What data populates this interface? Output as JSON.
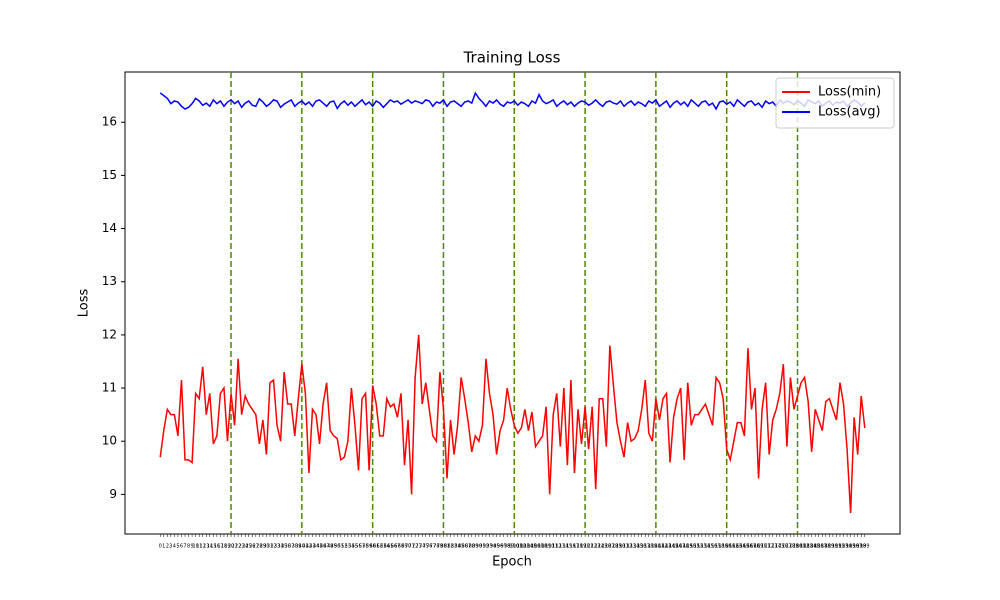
{
  "chart_data": {
    "type": "line",
    "title": "Training Loss",
    "xlabel": "Epoch",
    "ylabel": "Loss",
    "x": [
      0,
      1,
      2,
      3,
      4,
      5,
      6,
      7,
      8,
      9,
      10,
      11,
      12,
      13,
      14,
      15,
      16,
      17,
      18,
      19,
      20,
      21,
      22,
      23,
      24,
      25,
      26,
      27,
      28,
      29,
      30,
      31,
      32,
      33,
      34,
      35,
      36,
      37,
      38,
      39,
      40,
      41,
      42,
      43,
      44,
      45,
      46,
      47,
      48,
      49,
      50,
      51,
      52,
      53,
      54,
      55,
      56,
      57,
      58,
      59,
      60,
      61,
      62,
      63,
      64,
      65,
      66,
      67,
      68,
      69,
      70,
      71,
      72,
      73,
      74,
      75,
      76,
      77,
      78,
      79,
      80,
      81,
      82,
      83,
      84,
      85,
      86,
      87,
      88,
      89,
      90,
      91,
      92,
      93,
      94,
      95,
      96,
      97,
      98,
      99,
      100,
      101,
      102,
      103,
      104,
      105,
      106,
      107,
      108,
      109,
      110,
      111,
      112,
      113,
      114,
      115,
      116,
      117,
      118,
      119,
      120,
      121,
      122,
      123,
      124,
      125,
      126,
      127,
      128,
      129,
      130,
      131,
      132,
      133,
      134,
      135,
      136,
      137,
      138,
      139,
      140,
      141,
      142,
      143,
      144,
      145,
      146,
      147,
      148,
      149,
      150,
      151,
      152,
      153,
      154,
      155,
      156,
      157,
      158,
      159,
      160,
      161,
      162,
      163,
      164,
      165,
      166,
      167,
      168,
      169,
      170,
      171,
      172,
      173,
      174,
      175,
      176,
      177,
      178,
      179,
      180,
      181,
      182,
      183,
      184,
      185,
      186,
      187,
      188,
      189,
      190,
      191,
      192,
      193,
      194,
      195,
      196,
      197,
      198,
      199
    ],
    "series": [
      {
        "name": "Loss(min)",
        "color": "#ff0000",
        "values": [
          9.7,
          10.2,
          10.6,
          10.5,
          10.5,
          10.1,
          11.15,
          9.65,
          9.65,
          9.6,
          10.9,
          10.8,
          11.4,
          10.5,
          10.9,
          9.95,
          10.1,
          10.9,
          11.0,
          10.0,
          10.9,
          10.3,
          11.55,
          10.5,
          10.85,
          10.7,
          10.6,
          10.5,
          9.95,
          10.4,
          9.75,
          11.1,
          11.15,
          10.3,
          10.0,
          11.3,
          10.7,
          10.7,
          10.1,
          10.8,
          11.45,
          10.9,
          9.4,
          10.6,
          10.5,
          9.95,
          10.7,
          11.1,
          10.2,
          10.1,
          10.05,
          9.65,
          9.7,
          10.0,
          11.0,
          10.3,
          9.45,
          10.8,
          10.9,
          9.45,
          11.05,
          10.7,
          10.1,
          10.1,
          10.8,
          10.65,
          10.7,
          10.45,
          10.9,
          9.55,
          10.4,
          9.0,
          11.2,
          12.0,
          10.7,
          11.1,
          10.6,
          10.1,
          10.0,
          11.3,
          10.6,
          9.3,
          10.4,
          9.75,
          10.3,
          11.2,
          10.8,
          10.35,
          9.8,
          10.1,
          10.0,
          10.3,
          11.55,
          10.9,
          10.5,
          9.75,
          10.2,
          10.4,
          11.0,
          10.6,
          10.3,
          10.15,
          10.25,
          10.6,
          10.2,
          10.55,
          9.9,
          10.0,
          10.1,
          10.65,
          9.0,
          10.5,
          10.9,
          9.9,
          11.0,
          9.55,
          11.15,
          9.4,
          10.6,
          9.95,
          10.65,
          9.85,
          10.65,
          9.1,
          10.8,
          10.8,
          9.9,
          11.8,
          11.05,
          10.35,
          10.0,
          9.7,
          10.35,
          10.0,
          10.05,
          10.2,
          10.6,
          11.15,
          10.15,
          10.0,
          10.8,
          10.4,
          10.8,
          10.9,
          9.6,
          10.45,
          10.8,
          11.0,
          9.65,
          11.1,
          10.3,
          10.5,
          10.5,
          10.6,
          10.7,
          10.5,
          10.3,
          11.2,
          11.1,
          10.8,
          9.85,
          9.65,
          10.0,
          10.35,
          10.35,
          10.1,
          11.75,
          10.6,
          11.0,
          9.3,
          10.6,
          11.1,
          9.75,
          10.4,
          10.6,
          10.9,
          11.45,
          9.9,
          11.2,
          10.6,
          10.85,
          11.1,
          11.2,
          10.75,
          9.8,
          10.6,
          10.4,
          10.2,
          10.75,
          10.8,
          10.6,
          10.4,
          11.1,
          10.7,
          9.85,
          8.65,
          10.45,
          9.75,
          10.85,
          10.25
        ]
      },
      {
        "name": "Loss(avg)",
        "color": "#0000ff",
        "values": [
          16.55,
          16.5,
          16.45,
          16.35,
          16.4,
          16.38,
          16.3,
          16.25,
          16.28,
          16.35,
          16.45,
          16.4,
          16.32,
          16.36,
          16.3,
          16.42,
          16.35,
          16.4,
          16.3,
          16.38,
          16.42,
          16.35,
          16.4,
          16.28,
          16.36,
          16.4,
          16.32,
          16.3,
          16.44,
          16.38,
          16.3,
          16.35,
          16.42,
          16.4,
          16.28,
          16.34,
          16.38,
          16.42,
          16.3,
          16.36,
          16.4,
          16.33,
          16.38,
          16.3,
          16.4,
          16.42,
          16.36,
          16.3,
          16.38,
          16.4,
          16.26,
          16.35,
          16.4,
          16.32,
          16.38,
          16.3,
          16.36,
          16.42,
          16.33,
          16.38,
          16.3,
          16.4,
          16.36,
          16.28,
          16.35,
          16.42,
          16.38,
          16.4,
          16.34,
          16.38,
          16.42,
          16.36,
          16.4,
          16.38,
          16.35,
          16.42,
          16.4,
          16.3,
          16.38,
          16.36,
          16.42,
          16.3,
          16.38,
          16.4,
          16.35,
          16.3,
          16.38,
          16.4,
          16.36,
          16.55,
          16.45,
          16.38,
          16.3,
          16.4,
          16.36,
          16.42,
          16.34,
          16.3,
          16.38,
          16.36,
          16.4,
          16.32,
          16.38,
          16.35,
          16.3,
          16.4,
          16.36,
          16.52,
          16.4,
          16.35,
          16.38,
          16.42,
          16.3,
          16.36,
          16.4,
          16.33,
          16.38,
          16.3,
          16.36,
          16.4,
          16.38,
          16.32,
          16.36,
          16.42,
          16.35,
          16.3,
          16.38,
          16.4,
          16.36,
          16.34,
          16.4,
          16.3,
          16.36,
          16.4,
          16.32,
          16.38,
          16.35,
          16.3,
          16.4,
          16.36,
          16.42,
          16.3,
          16.35,
          16.4,
          16.28,
          16.36,
          16.4,
          16.33,
          16.38,
          16.3,
          16.42,
          16.36,
          16.3,
          16.38,
          16.4,
          16.32,
          16.36,
          16.25,
          16.38,
          16.4,
          16.34,
          16.38,
          16.3,
          16.42,
          16.36,
          16.3,
          16.38,
          16.4,
          16.32,
          16.36,
          16.28,
          16.4,
          16.35,
          16.38,
          16.3,
          16.42,
          16.36,
          16.4,
          16.38,
          16.33,
          16.4,
          16.36,
          16.3,
          16.42,
          16.38,
          16.35,
          16.4,
          16.3,
          16.36,
          16.4,
          16.32,
          16.38,
          16.36,
          16.4,
          16.3,
          16.36,
          16.42,
          16.38,
          16.3,
          16.36
        ]
      }
    ],
    "vlines": [
      20,
      40,
      60,
      80,
      100,
      120,
      140,
      160,
      180
    ],
    "vline_color": "#4d8a00",
    "xlim": [
      -9.95,
      208.95
    ],
    "ylim": [
      8.255,
      16.945
    ],
    "yticks": [
      9,
      10,
      11,
      12,
      13,
      14,
      15,
      16
    ],
    "legend": "upper right"
  }
}
